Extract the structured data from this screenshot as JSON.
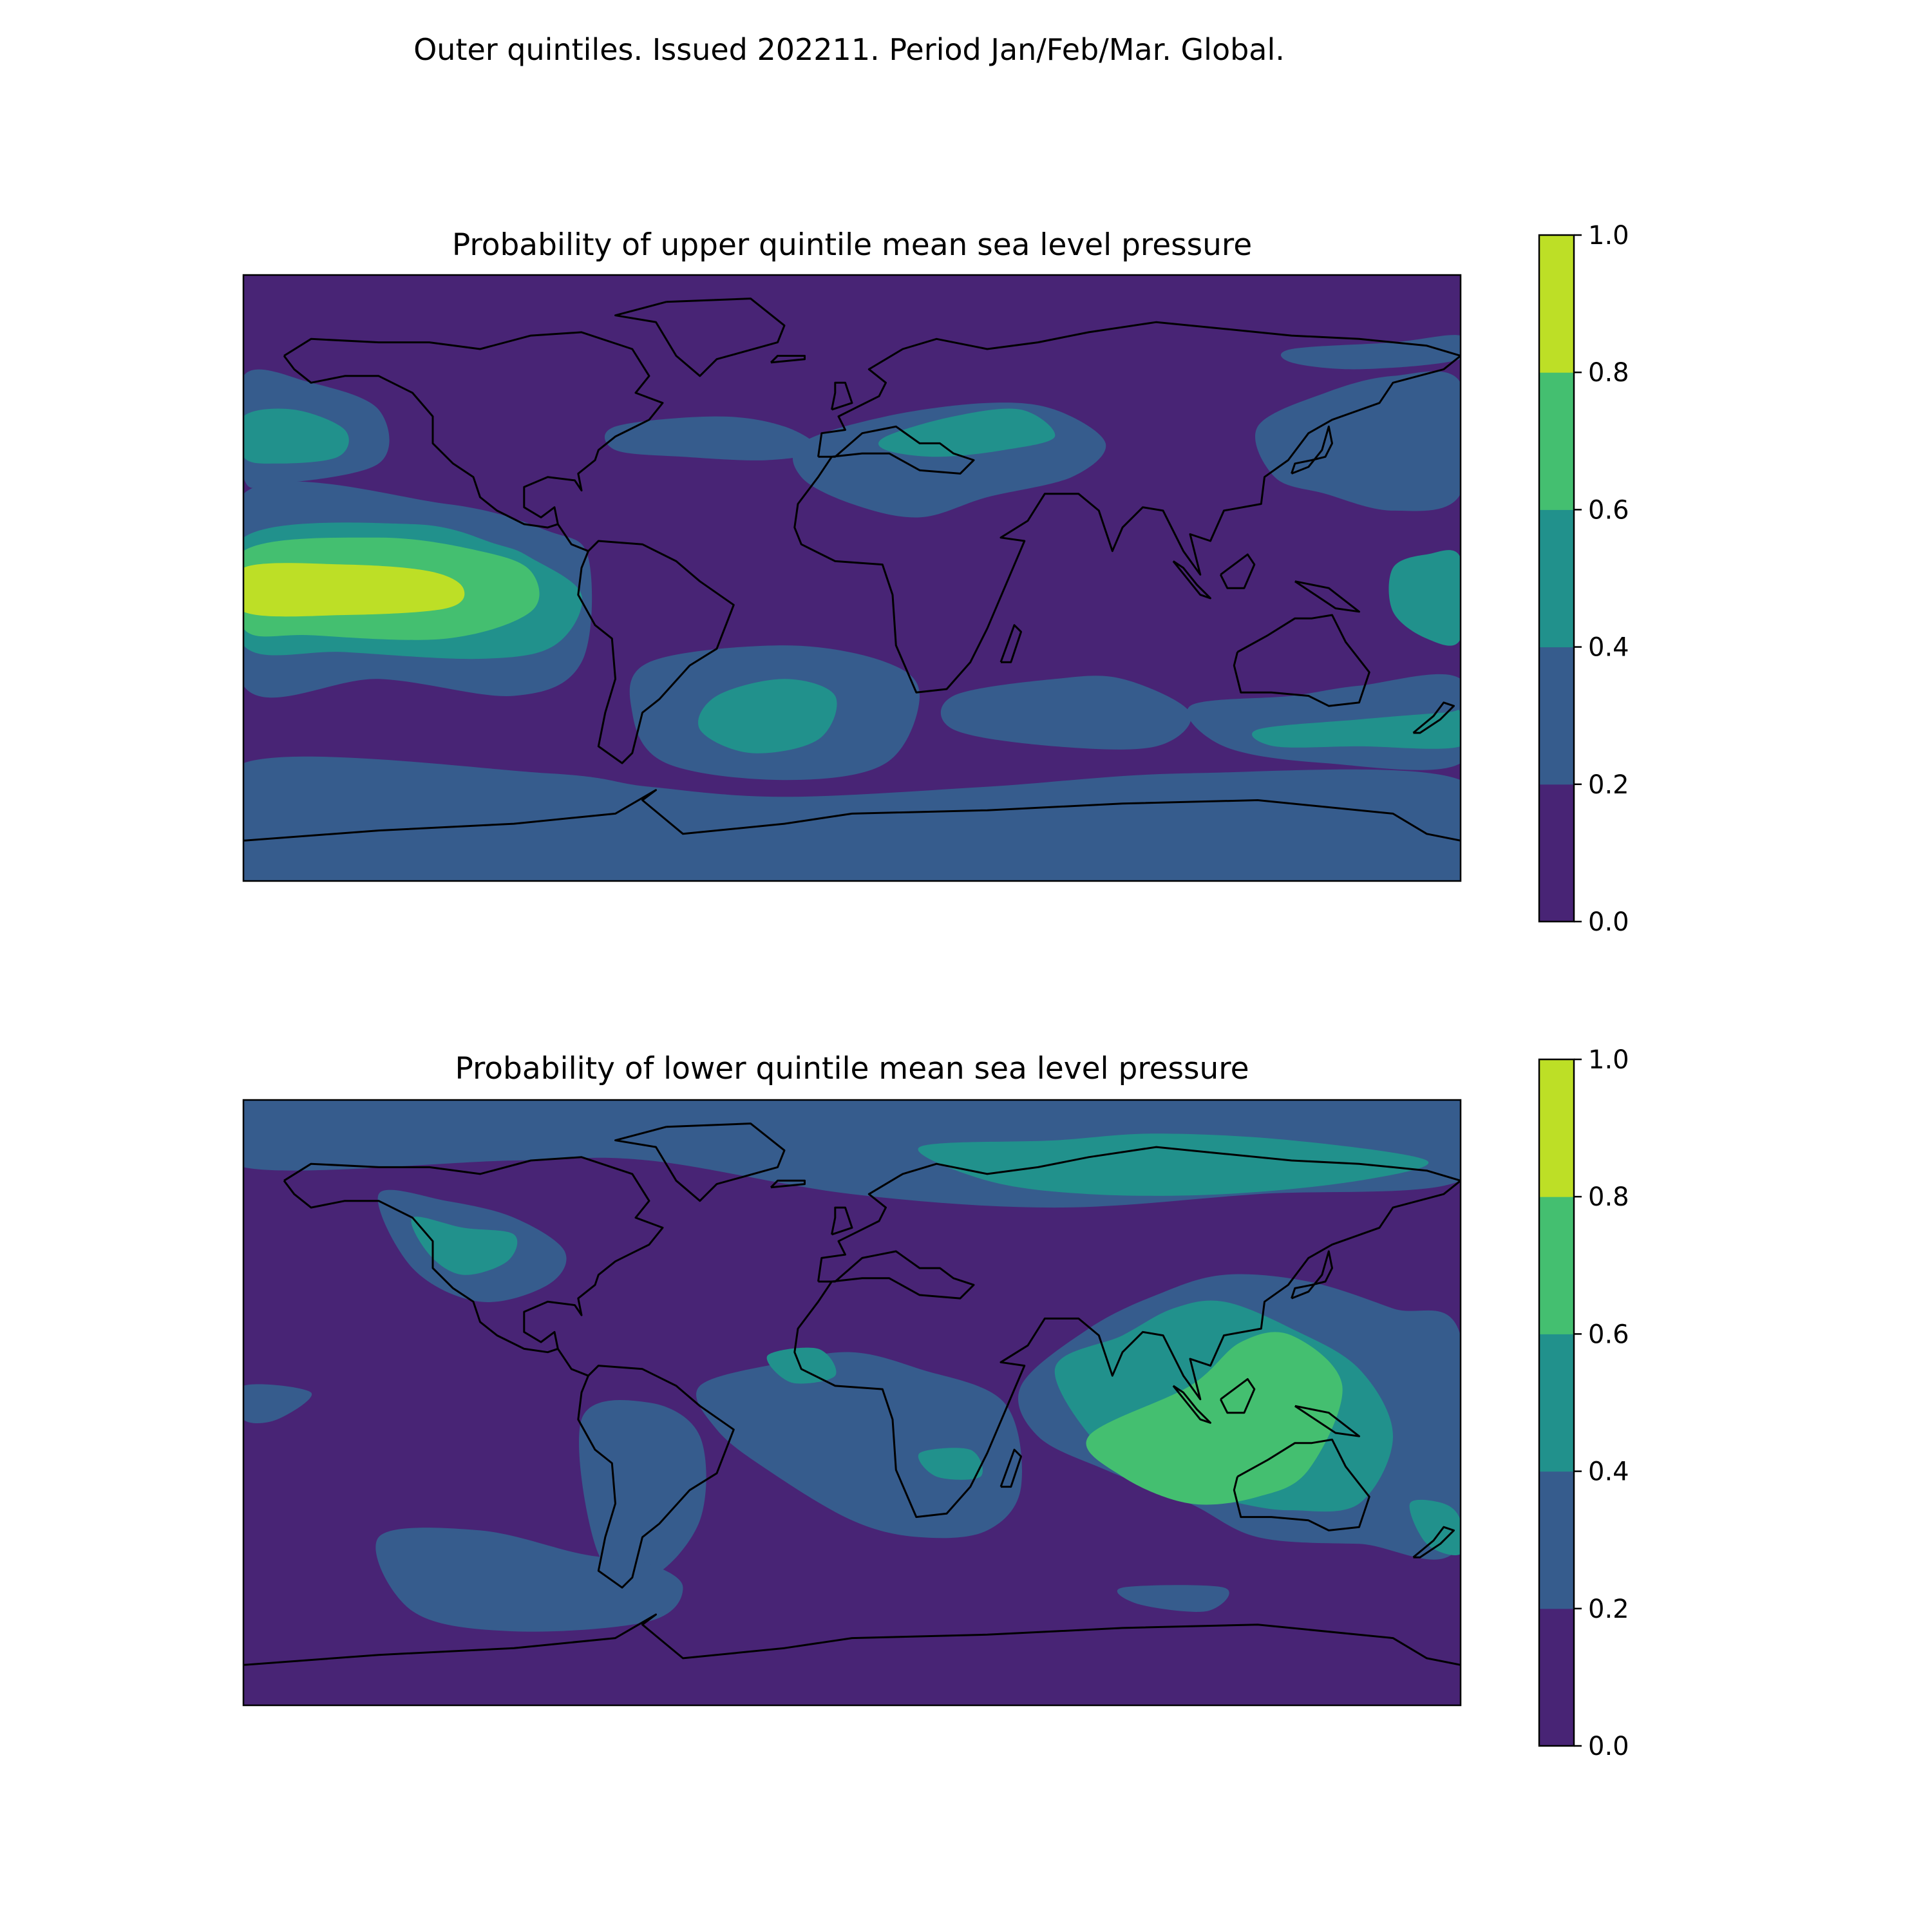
{
  "suptitle": "Outer quintiles. Issued 202211. Period Jan/Feb/Mar. Global.",
  "palette": [
    "#482475",
    "#365c8d",
    "#21918c",
    "#44bf70",
    "#bddf26"
  ],
  "chart_data": [
    {
      "type": "heatmap",
      "title": "Probability of upper quintile mean sea level pressure",
      "colorbar": {
        "levels": [
          0.0,
          0.2,
          0.4,
          0.6,
          0.8,
          1.0
        ],
        "tick_labels": [
          "0.0",
          "0.2",
          "0.4",
          "0.6",
          "0.8",
          "1.0"
        ]
      },
      "background_class": 0,
      "regions": [
        {
          "name": "tropical-east-pacific",
          "class": 1,
          "lon": [
            -180,
            -120,
            -90,
            -78,
            -80,
            -100,
            -140,
            -180
          ],
          "lat": [
            25,
            22,
            14,
            6,
            -25,
            -35,
            -30,
            -32
          ]
        },
        {
          "name": "east-pacific-band-mid",
          "class": 2,
          "lon": [
            -180,
            -130,
            -105,
            -95,
            -80,
            -88,
            -110,
            -150,
            -180
          ],
          "lat": [
            12,
            16,
            10,
            6,
            -5,
            -20,
            -24,
            -22,
            -20
          ]
        },
        {
          "name": "east-pacific-band-high",
          "class": 3,
          "lon": [
            -180,
            -140,
            -110,
            -95,
            -95,
            -120,
            -160,
            -180
          ],
          "lat": [
            8,
            12,
            8,
            2,
            -10,
            -18,
            -17,
            -15
          ]
        },
        {
          "name": "central-pacific-core",
          "class": 4,
          "lon": [
            -180,
            -150,
            -125,
            -115,
            -120,
            -150,
            -180
          ],
          "lat": [
            3,
            4,
            2,
            -3,
            -9,
            -11,
            -10
          ]
        },
        {
          "name": "west-pacific-high",
          "class": 4,
          "lon": [
            167,
            175,
            180,
            180,
            172,
            166
          ],
          "lat": [
            -1,
            2,
            1,
            -13,
            -12,
            -6
          ]
        },
        {
          "name": "west-pacific-mid",
          "class": 2,
          "lon": [
            160,
            170,
            180,
            180,
            170,
            160
          ],
          "lat": [
            3,
            7,
            6,
            -18,
            -18,
            -10
          ]
        },
        {
          "name": "north-pacific",
          "class": 1,
          "lon": [
            -180,
            -160,
            -140,
            -140,
            -170,
            -180
          ],
          "lat": [
            60,
            58,
            50,
            34,
            28,
            30
          ]
        },
        {
          "name": "north-pacific-core",
          "class": 2,
          "lon": [
            -180,
            -165,
            -150,
            -152,
            -170,
            -180
          ],
          "lat": [
            48,
            50,
            44,
            36,
            34,
            36
          ]
        },
        {
          "name": "north-atlantic",
          "class": 1,
          "lon": [
            -70,
            -40,
            -20,
            -10,
            -25,
            -50,
            -70
          ],
          "lat": [
            45,
            48,
            45,
            38,
            35,
            36,
            38
          ]
        },
        {
          "name": "mediterranean-asia",
          "class": 1,
          "lon": [
            -15,
            10,
            40,
            60,
            75,
            65,
            40,
            20,
            0,
            -15
          ],
          "lat": [
            40,
            48,
            52,
            50,
            40,
            30,
            24,
            18,
            22,
            30
          ]
        },
        {
          "name": "mediterranean-core",
          "class": 2,
          "lon": [
            10,
            30,
            50,
            60,
            45,
            25,
            10
          ],
          "lat": [
            42,
            48,
            50,
            42,
            38,
            36,
            38
          ]
        },
        {
          "name": "south-atlantic",
          "class": 1,
          "lon": [
            -60,
            -20,
            10,
            20,
            10,
            -20,
            -55,
            -65
          ],
          "lat": [
            -25,
            -20,
            -25,
            -35,
            -55,
            -60,
            -55,
            -40
          ]
        },
        {
          "name": "south-atlantic-core",
          "class": 2,
          "lon": [
            -40,
            -20,
            -5,
            -10,
            -30,
            -45
          ],
          "lat": [
            -35,
            -30,
            -35,
            -48,
            -52,
            -45
          ]
        },
        {
          "name": "south-indian",
          "class": 1,
          "lon": [
            30,
            60,
            80,
            100,
            90,
            60,
            30
          ],
          "lat": [
            -35,
            -30,
            -30,
            -40,
            -50,
            -50,
            -45
          ]
        },
        {
          "name": "south-of-australia",
          "class": 1,
          "lon": [
            100,
            130,
            150,
            180,
            180,
            140,
            110
          ],
          "lat": [
            -38,
            -35,
            -32,
            -30,
            -55,
            -55,
            -50
          ]
        },
        {
          "name": "south-of-australia-core",
          "class": 2,
          "lon": [
            120,
            150,
            175,
            180,
            180,
            150,
            125
          ],
          "lat": [
            -45,
            -42,
            -40,
            -40,
            -50,
            -50,
            -50
          ]
        },
        {
          "name": "southern-ocean-ring",
          "class": 1,
          "lon": [
            -180,
            -90,
            -60,
            -20,
            40,
            100,
            180,
            180,
            -180
          ],
          "lat": [
            -55,
            -58,
            -62,
            -65,
            -62,
            -58,
            -60,
            -90,
            -90
          ]
        },
        {
          "name": "east-asia-pacific",
          "class": 1,
          "lon": [
            120,
            140,
            160,
            180,
            180,
            160,
            140,
            125
          ],
          "lat": [
            45,
            55,
            60,
            58,
            25,
            20,
            25,
            30
          ]
        },
        {
          "name": "arctic-east",
          "class": 1,
          "lon": [
            130,
            160,
            180,
            180,
            150,
            130
          ],
          "lat": [
            68,
            70,
            72,
            65,
            62,
            64
          ]
        }
      ]
    },
    {
      "type": "heatmap",
      "title": "Probability of lower quintile mean sea level pressure",
      "colorbar": {
        "levels": [
          0.0,
          0.2,
          0.4,
          0.6,
          0.8,
          1.0
        ],
        "tick_labels": [
          "0.0",
          "0.2",
          "0.4",
          "0.6",
          "0.8",
          "1.0"
        ]
      },
      "background_class": 0,
      "regions": [
        {
          "name": "arctic",
          "class": 1,
          "lon": [
            -180,
            -100,
            -60,
            0,
            60,
            120,
            180,
            180,
            -180
          ],
          "lat": [
            70,
            72,
            72,
            62,
            58,
            62,
            66,
            90,
            90
          ]
        },
        {
          "name": "arctic-core",
          "class": 2,
          "lon": [
            20,
            60,
            90,
            130,
            170,
            150,
            110,
            70,
            40
          ],
          "lat": [
            76,
            78,
            80,
            78,
            72,
            66,
            62,
            62,
            66
          ]
        },
        {
          "name": "north-america",
          "class": 1,
          "lon": [
            -140,
            -120,
            -100,
            -85,
            -90,
            -110,
            -130
          ],
          "lat": [
            62,
            60,
            55,
            45,
            35,
            30,
            40
          ]
        },
        {
          "name": "north-america-core",
          "class": 2,
          "lon": [
            -130,
            -115,
            -100,
            -102,
            -115,
            -125
          ],
          "lat": [
            55,
            52,
            50,
            42,
            38,
            44
          ]
        },
        {
          "name": "tropical-atlantic-africa",
          "class": 1,
          "lon": [
            -45,
            -20,
            0,
            20,
            45,
            50,
            40,
            20,
            0,
            -25,
            -40
          ],
          "lat": [
            5,
            12,
            15,
            10,
            0,
            -25,
            -38,
            -40,
            -35,
            -20,
            -8
          ]
        },
        {
          "name": "west-africa-core",
          "class": 2,
          "lon": [
            -25,
            -10,
            -5,
            -18
          ],
          "lat": [
            14,
            16,
            8,
            6
          ]
        },
        {
          "name": "south-africa-core",
          "class": 2,
          "lon": [
            20,
            35,
            38,
            25
          ],
          "lat": [
            -15,
            -14,
            -22,
            -22
          ]
        },
        {
          "name": "indian-ocean-asia",
          "class": 1,
          "lon": [
            50,
            70,
            90,
            110,
            135,
            160,
            180,
            180,
            150,
            120,
            100,
            75,
            55
          ],
          "lat": [
            5,
            22,
            32,
            38,
            36,
            28,
            20,
            -42,
            -42,
            -40,
            -30,
            -20,
            -10
          ]
        },
        {
          "name": "indian-ocean-mid",
          "class": 2,
          "lon": [
            60,
            80,
            95,
            110,
            130,
            150,
            160,
            150,
            130,
            115,
            95,
            75
          ],
          "lat": [
            10,
            20,
            28,
            30,
            22,
            10,
            -10,
            -30,
            -32,
            -30,
            -25,
            -15
          ]
        },
        {
          "name": "maritime-continent",
          "class": 3,
          "lon": [
            70,
            100,
            115,
            130,
            145,
            135,
            120,
            100,
            80
          ],
          "lat": [
            -10,
            5,
            18,
            20,
            5,
            -20,
            -28,
            -30,
            -22
          ]
        },
        {
          "name": "south-america",
          "class": 1,
          "lon": [
            -80,
            -60,
            -45,
            -45,
            -60,
            -75
          ],
          "lat": [
            -5,
            0,
            -10,
            -35,
            -52,
            -45
          ]
        },
        {
          "name": "south-pacific",
          "class": 1,
          "lon": [
            -140,
            -110,
            -80,
            -60,
            -50,
            -60,
            -100,
            -130
          ],
          "lat": [
            -40,
            -38,
            -45,
            -48,
            -55,
            -65,
            -68,
            -62
          ]
        },
        {
          "name": "east-pacific-strip",
          "class": 1,
          "lon": [
            -180,
            -160,
            -170,
            -180
          ],
          "lat": [
            5,
            3,
            -5,
            -5
          ]
        },
        {
          "name": "new-zealand",
          "class": 2,
          "lon": [
            165,
            175,
            180,
            180,
            170
          ],
          "lat": [
            -30,
            -30,
            -35,
            -45,
            -42
          ]
        },
        {
          "name": "central-south-indian",
          "class": 1,
          "lon": [
            80,
            110,
            105,
            85
          ],
          "lat": [
            -55,
            -55,
            -62,
            -60
          ]
        }
      ]
    }
  ]
}
